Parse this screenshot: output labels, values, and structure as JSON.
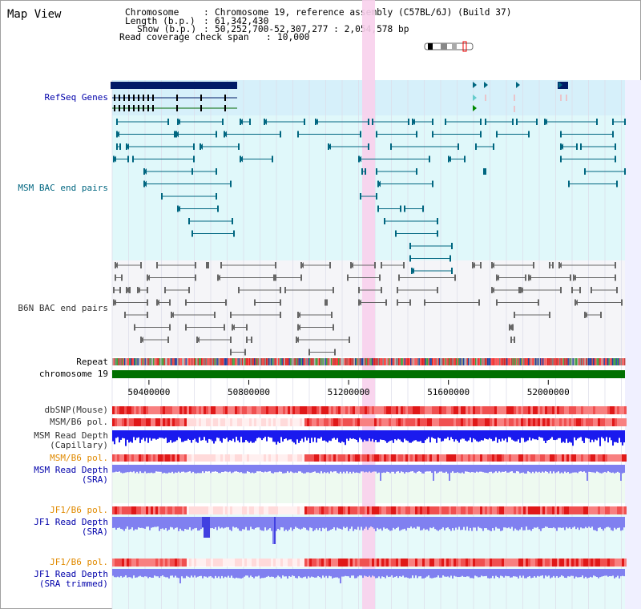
{
  "view": {
    "title": "Map View"
  },
  "info": {
    "chromosome_key": "Chromosome",
    "chromosome_val": "Chromosome 19, reference assembly (C57BL/6J) (Build 37)",
    "length_key": "Length (b.p.)",
    "length_val": "61,342,430",
    "show_key": "Show (b.p.)",
    "show_val": "50,252,700-52,307,277 : 2,054,578 bp",
    "coverage_key": "Read coverage check span",
    "coverage_val": "10,000"
  },
  "tracks": {
    "refseq": "RefSeq Genes",
    "msm_bac": "MSM BAC end pairs",
    "b6n_bac": "B6N BAC end pairs",
    "repeat": "Repeat",
    "chromosome": "chromosome 19",
    "dbsnp": "dbSNP(Mouse)",
    "msm_b6_pol": "MSM/B6 pol.",
    "msm_depth_cap": "MSM Read Depth\n(Capillary)",
    "msm_b6_pol2": "MSM/B6 pol.",
    "msm_depth_sra": "MSM Read Depth\n(SRA)",
    "jf1_b6_pol": "JF1/B6 pol.",
    "jf1_depth_sra": "JF1 Read Depth\n(SRA)",
    "jf1_b6_pol2": "JF1/B6 pol.",
    "jf1_depth_trim": "JF1 Read Depth\n(SRA trimmed)"
  },
  "axis": {
    "ticks": [
      "50400000",
      "50800000",
      "51200000",
      "51600000",
      "52000000"
    ],
    "tick_values": [
      50400000,
      50800000,
      51200000,
      51600000,
      52000000
    ],
    "range": [
      50252700,
      52307277
    ],
    "highlight_range": [
      51210000,
      51260000
    ]
  },
  "colors": {
    "refseq_bg": "#d6f0fa",
    "msm_bg": "#e0f8fa",
    "b6n_bg": "#f5f5f8",
    "highlight": "#f8d0ec",
    "navy": "#001a66",
    "teal": "#006680",
    "gray": "#666666",
    "chrom": "#007000",
    "blue_label": "#0000aa",
    "teal_label": "#006680",
    "gray_label": "#333333",
    "orange_label": "#e08a00",
    "depth_blue": "#1a1aee",
    "depth_light": "#8080f0"
  }
}
